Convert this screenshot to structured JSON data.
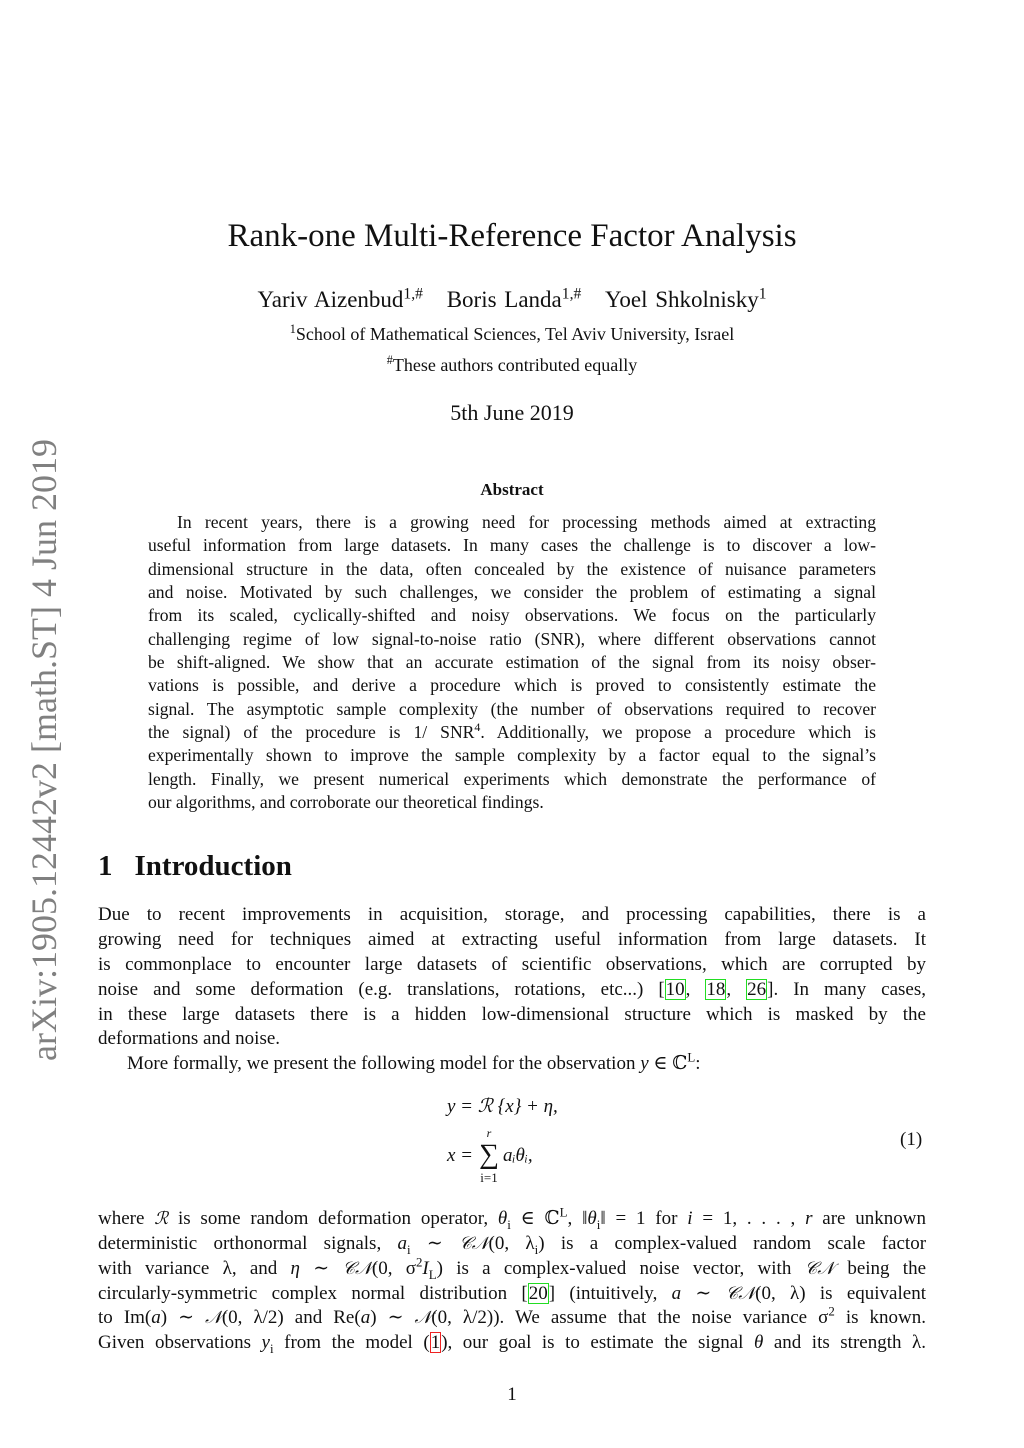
{
  "side_label": "arXiv:1905.12442v2  [math.ST]  4 Jun 2019",
  "title": "Rank-one Multi-Reference Factor Analysis",
  "authors": [
    {
      "name": "Yariv Aizenbud",
      "mark": "1,#"
    },
    {
      "name": "Boris Landa",
      "mark": "1,#"
    },
    {
      "name": "Yoel Shkolnisky",
      "mark": "1"
    }
  ],
  "affiliation": {
    "mark": "1",
    "text": "School of Mathematical Sciences, Tel Aviv University, Israel"
  },
  "note": {
    "mark": "#",
    "text": "These authors contributed equally"
  },
  "date": "5th June 2019",
  "abstract": {
    "heading": "Abstract",
    "lines": [
      {
        "cls": "indent",
        "seg": [
          "In recent years, there is a growing need for processing methods aimed at extracting"
        ]
      },
      {
        "seg": [
          "useful information from large datasets. In many cases the challenge is to discover a low-"
        ]
      },
      {
        "seg": [
          "dimensional structure in the data, often concealed by the existence of nuisance parameters"
        ]
      },
      {
        "seg": [
          "and noise. Motivated by such challenges, we consider the problem of estimating a signal"
        ]
      },
      {
        "seg": [
          "from its scaled, cyclically-shifted and noisy observations. We focus on the particularly"
        ]
      },
      {
        "seg": [
          "challenging regime of low signal-to-noise ratio (SNR), where different observations cannot"
        ]
      },
      {
        "seg": [
          "be shift-aligned. We show that an accurate estimation of the signal from its noisy obser-"
        ]
      },
      {
        "seg": [
          "vations is possible, and derive a procedure which is proved to consistently estimate the"
        ]
      },
      {
        "seg": [
          "signal. The asymptotic sample complexity (the number of observations required to recover"
        ]
      },
      {
        "seg": [
          "the signal) of the procedure is 1/ SNR",
          {
            "t": "4",
            "s": "sup"
          },
          ". Additionally, we propose a procedure which is"
        ]
      },
      {
        "seg": [
          "experimentally shown to improve the sample complexity by a factor equal to the signal’s"
        ]
      },
      {
        "seg": [
          "length. Finally, we present numerical experiments which demonstrate the performance of"
        ]
      },
      {
        "cls": "last",
        "seg": [
          "our algorithms, and corroborate our theoretical findings."
        ]
      }
    ]
  },
  "section": {
    "number": "1",
    "title": "Introduction"
  },
  "intro": {
    "lines": [
      {
        "seg": [
          "Due to recent improvements in acquisition, storage, and processing capabilities, there is a"
        ]
      },
      {
        "seg": [
          "growing need for techniques aimed at extracting useful information from large datasets. It"
        ]
      },
      {
        "seg": [
          "is commonplace to encounter large datasets of scientific observations, which are corrupted by"
        ]
      },
      {
        "seg": [
          "noise and some deformation (e.g. translations, rotations, etc...) [",
          {
            "t": "10",
            "s": "cite-g"
          },
          ", ",
          {
            "t": "18",
            "s": "cite-g"
          },
          ", ",
          {
            "t": "26",
            "s": "cite-g"
          },
          "]. In many cases,"
        ]
      },
      {
        "seg": [
          "in these large datasets there is a hidden low-dimensional structure which is masked by the"
        ]
      },
      {
        "cls": "last",
        "seg": [
          "deformations and noise."
        ]
      },
      {
        "cls": "indent last",
        "seg": [
          "More formally, we present the following model for the observation ",
          {
            "t": "y",
            "s": "m"
          },
          " ∈ ℂ",
          {
            "t": "L",
            "s": "sup"
          },
          ":"
        ]
      }
    ]
  },
  "equation": {
    "line1": "y = ℛ {x} + η,",
    "line2_lhs": "x =",
    "sum_symbol": "∑",
    "sum_upper": "r",
    "sum_lower": "i=1",
    "line2_rhs": "aᵢθᵢ,",
    "number": "(1)"
  },
  "para2": {
    "lines": [
      {
        "seg": [
          "where ",
          {
            "t": "ℛ",
            "s": "cal"
          },
          " is some random deformation operator, ",
          {
            "t": "θ",
            "s": "m"
          },
          {
            "t": "i",
            "s": "sub"
          },
          " ∈ ℂ",
          {
            "t": "L",
            "s": "sup"
          },
          ", ‖",
          {
            "t": "θ",
            "s": "m"
          },
          {
            "t": "i",
            "s": "sub"
          },
          "‖ = 1 for ",
          {
            "t": "i",
            "s": "m"
          },
          " = 1, . . . , ",
          {
            "t": "r",
            "s": "m"
          },
          " are unknown"
        ]
      },
      {
        "seg": [
          "deterministic orthonormal signals, ",
          {
            "t": "a",
            "s": "m"
          },
          {
            "t": "i",
            "s": "sub"
          },
          " ∼ ",
          {
            "t": "𝒞𝒩",
            "s": "cal"
          },
          "(0, λ",
          {
            "t": "i",
            "s": "sub"
          },
          ") is a complex-valued random scale factor"
        ]
      },
      {
        "seg": [
          "with variance λ, and ",
          {
            "t": "η",
            "s": "m"
          },
          " ∼ ",
          {
            "t": "𝒞𝒩",
            "s": "cal"
          },
          "(0, σ",
          {
            "t": "2",
            "s": "sup"
          },
          {
            "t": "I",
            "s": "m"
          },
          {
            "t": "L",
            "s": "sub"
          },
          ") is a complex-valued noise vector, with ",
          {
            "t": "𝒞𝒩",
            "s": "cal"
          },
          " being the"
        ]
      },
      {
        "seg": [
          "circularly-symmetric complex normal distribution [",
          {
            "t": "20",
            "s": "cite-g"
          },
          "] (intuitively, ",
          {
            "t": "a",
            "s": "m"
          },
          " ∼ ",
          {
            "t": "𝒞𝒩",
            "s": "cal"
          },
          "(0, λ) is equivalent"
        ]
      },
      {
        "seg": [
          "to Im(",
          {
            "t": "a",
            "s": "m"
          },
          ") ∼ ",
          {
            "t": "𝒩",
            "s": "cal"
          },
          "(0, λ/2) and Re(",
          {
            "t": "a",
            "s": "m"
          },
          ") ∼ ",
          {
            "t": "𝒩",
            "s": "cal"
          },
          "(0, λ/2)). We assume that the noise variance σ",
          {
            "t": "2",
            "s": "sup"
          },
          " is known."
        ]
      },
      {
        "seg": [
          "Given observations ",
          {
            "t": "y",
            "s": "m"
          },
          {
            "t": "i",
            "s": "sub"
          },
          " from the model (",
          {
            "t": "1",
            "s": "cite-r"
          },
          "), our goal is to estimate the signal ",
          {
            "t": "θ",
            "s": "m"
          },
          " and its strength λ."
        ]
      }
    ]
  },
  "page_number": "1",
  "colors": {
    "citation_box": "#22dd22",
    "equation_ref_box": "#ee2222",
    "side_label": "#808080"
  }
}
